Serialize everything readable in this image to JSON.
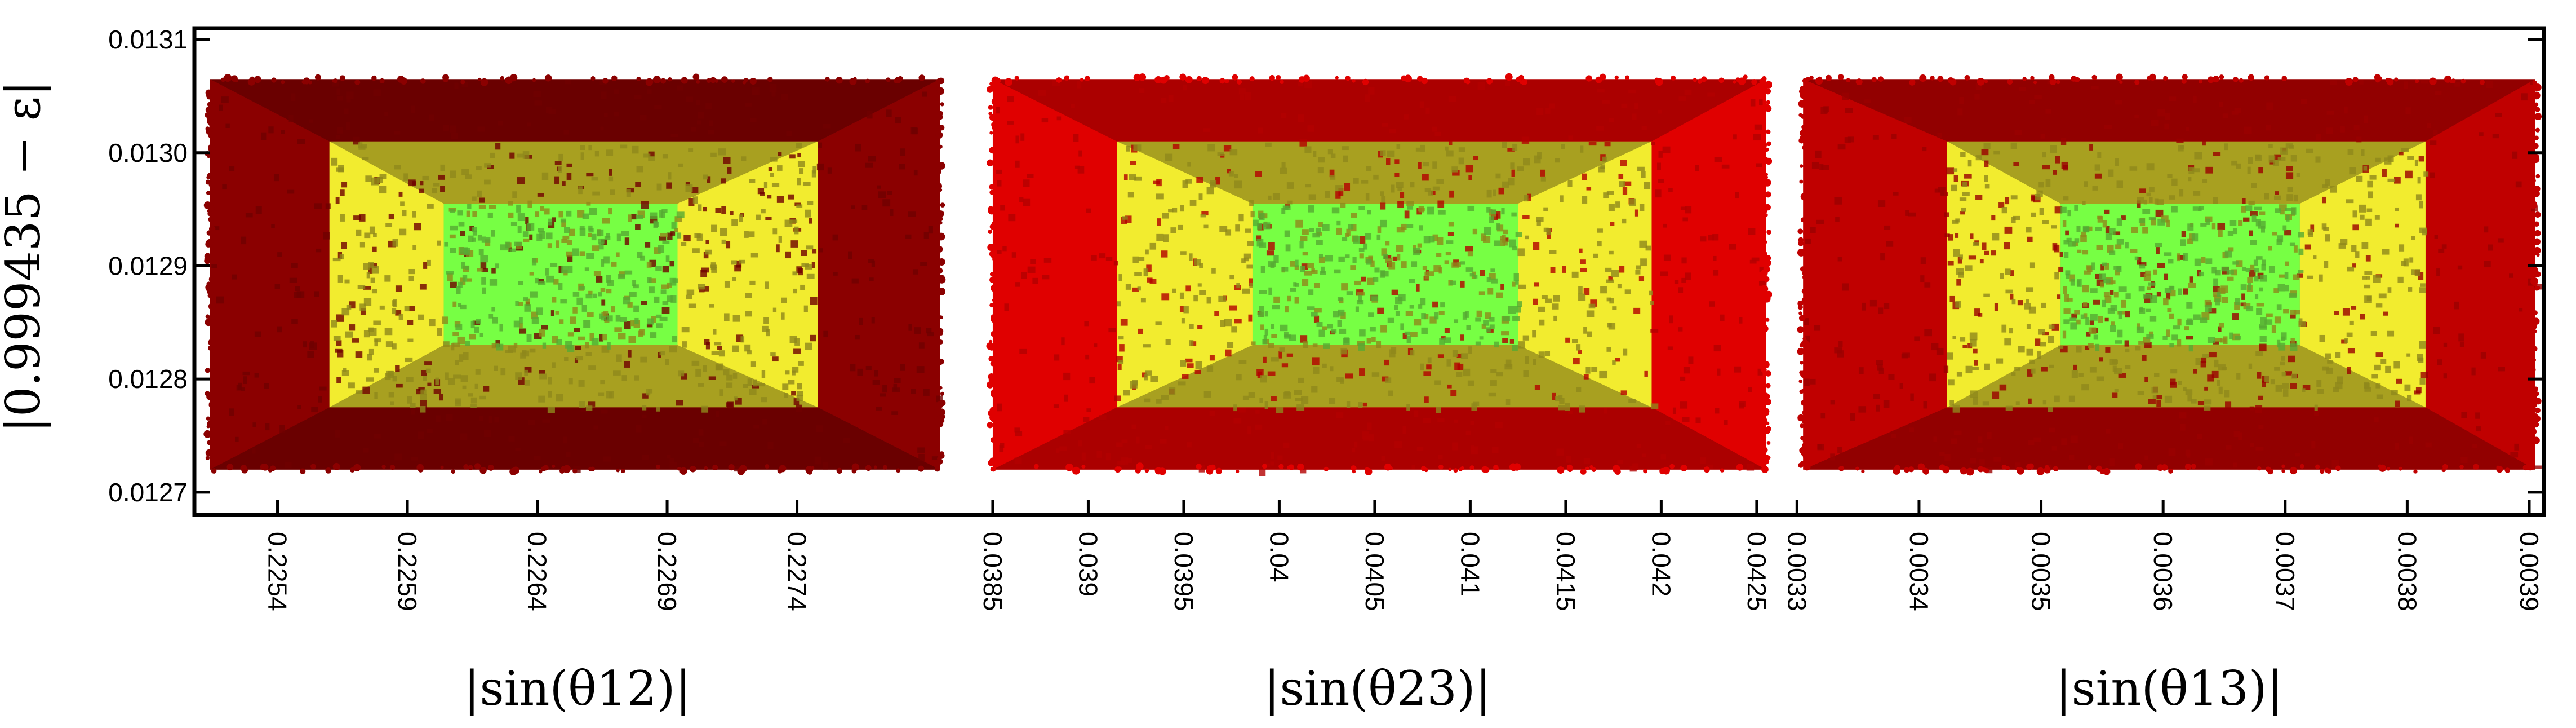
{
  "chart_data": {
    "type": "scatter",
    "ylabel": "|0.999435 − ε|",
    "ylim": [
      0.01268,
      0.01311
    ],
    "yticks": [
      "0.0127",
      "0.0128",
      "0.0129",
      "0.0130",
      "0.0131"
    ],
    "frame": "single box containing three panels",
    "panels": [
      {
        "xlabel": "|sin(θ12)|",
        "xlim": [
          0.22508,
          0.22803
        ],
        "xticks": [
          "0.2254",
          "0.2259",
          "0.2264",
          "0.2269",
          "0.2274"
        ],
        "regions": [
          {
            "color": "#8b0000",
            "x": [
              0.22514,
              0.22795
            ],
            "y": [
              0.01272,
              0.013065
            ]
          },
          {
            "color": "#a8a020",
            "x": [
              0.2256,
              0.22748
            ],
            "y": [
              0.012775,
              0.01301
            ]
          },
          {
            "color": "#77ff44",
            "x": [
              0.22604,
              0.22694
            ],
            "y": [
              0.01283,
              0.012955
            ]
          }
        ]
      },
      {
        "xlabel": "|sin(θ23)|",
        "xlim": [
          0.03845,
          0.04258
        ],
        "xticks": [
          "0.0385",
          "0.039",
          "0.0395",
          "0.04",
          "0.0405",
          "0.041",
          "0.0415",
          "0.042",
          "0.0425"
        ],
        "regions": [
          {
            "color": "#e00000",
            "x": [
              0.0385,
              0.04255
            ],
            "y": [
              0.01272,
              0.013065
            ]
          },
          {
            "color": "#a8a020",
            "x": [
              0.03915,
              0.04195
            ],
            "y": [
              0.012775,
              0.01301
            ]
          },
          {
            "color": "#77ff44",
            "x": [
              0.03986,
              0.04125
            ],
            "y": [
              0.01283,
              0.012955
            ]
          }
        ]
      },
      {
        "xlabel": "|sin(θ13)|",
        "xlim": [
          0.003298,
          0.003912
        ],
        "xticks": [
          "0.0033",
          "0.0034",
          "0.0035",
          "0.0036",
          "0.0037",
          "0.0038",
          "0.0039"
        ],
        "regions": [
          {
            "color": "#c00000",
            "x": [
              0.003305,
              0.003905
            ],
            "y": [
              0.01272,
              0.013065
            ]
          },
          {
            "color": "#a8a020",
            "x": [
              0.003423,
              0.003815
            ],
            "y": [
              0.012775,
              0.01301
            ]
          },
          {
            "color": "#77ff44",
            "x": [
              0.003516,
              0.003712
            ],
            "y": [
              0.01283,
              0.012955
            ]
          }
        ]
      }
    ]
  }
}
